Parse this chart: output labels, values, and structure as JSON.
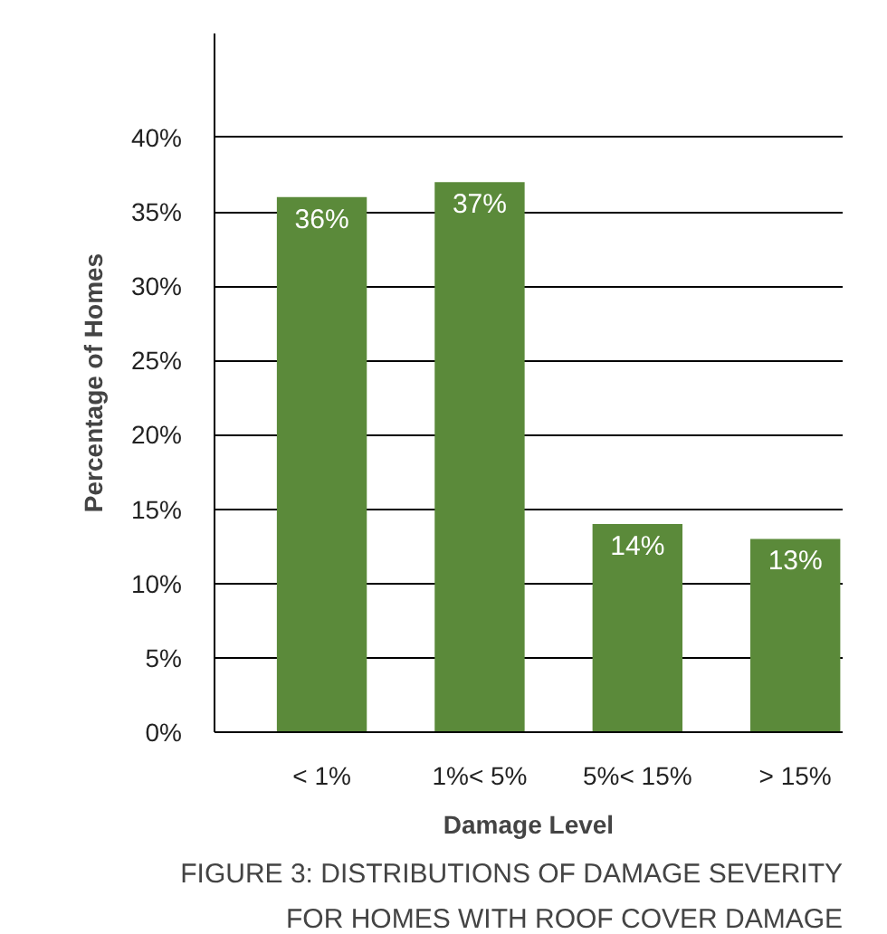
{
  "chart_data": {
    "type": "bar",
    "categories": [
      "< 1%",
      "1%< 5%",
      "5%< 15%",
      "> 15%"
    ],
    "values": [
      36,
      37,
      14,
      13
    ],
    "value_labels": [
      "36%",
      "37%",
      "14%",
      "13%"
    ],
    "color": "#5b8a3a",
    "xlabel": "Damage Level",
    "ylabel": "Percentage of Homes",
    "ylim": [
      0,
      47
    ],
    "yticks": [
      {
        "value": 0,
        "label": "0%"
      },
      {
        "value": 5,
        "label": "5%"
      },
      {
        "value": 10,
        "label": "10%"
      },
      {
        "value": 15,
        "label": "15%"
      },
      {
        "value": 20,
        "label": "20%"
      },
      {
        "value": 25,
        "label": "25%"
      },
      {
        "value": 30,
        "label": "30%"
      },
      {
        "value": 35,
        "label": "35%"
      },
      {
        "value": 40,
        "label": "40%"
      }
    ],
    "grid": "y",
    "annotations": [
      "FIGURE 3: DISTRIBUTIONS OF DAMAGE SEVERITY\nFOR HOMES WITH ROOF COVER DAMAGE"
    ]
  }
}
